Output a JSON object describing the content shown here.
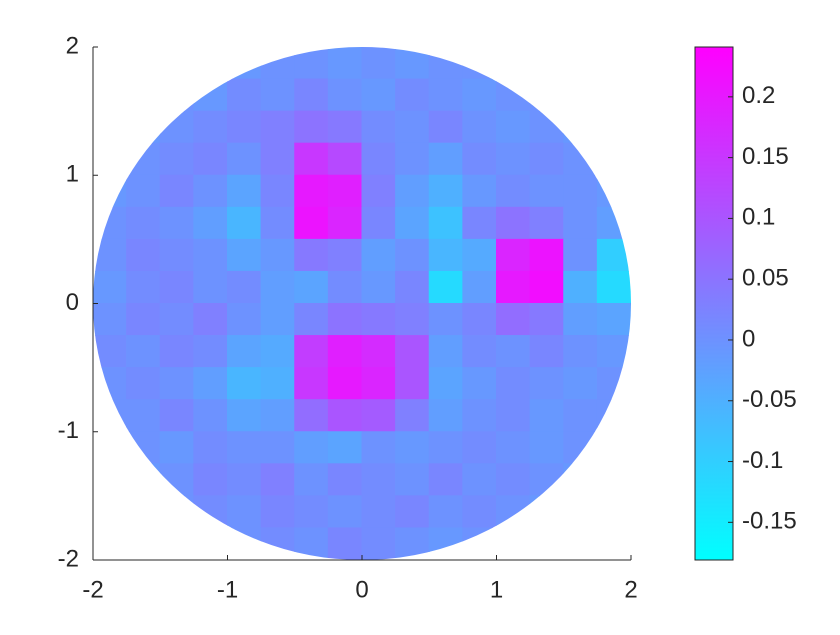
{
  "chart_data": {
    "type": "mesh",
    "colormap": "cool",
    "x": [
      -1.875,
      -1.625,
      -1.375,
      -1.125,
      -0.875,
      -0.625,
      -0.375,
      -0.125,
      0.125,
      0.375,
      0.625,
      0.875,
      1.125,
      1.375,
      1.625,
      1.875
    ],
    "y": [
      1.875,
      1.625,
      1.375,
      1.125,
      0.875,
      0.625,
      0.375,
      0.125,
      -0.125,
      -0.375,
      -0.625,
      -0.875,
      -1.125,
      -1.375,
      -1.625,
      -1.875
    ],
    "z": [
      [
        null,
        null,
        null,
        null,
        -0.01,
        0.0,
        0.0,
        -0.01,
        0.0,
        -0.01,
        0.0,
        0.0,
        null,
        null,
        null,
        null
      ],
      [
        null,
        null,
        0.0,
        -0.01,
        0.01,
        0.0,
        0.02,
        0.0,
        -0.01,
        0.01,
        0.0,
        -0.01,
        0.0,
        0.0,
        null,
        null
      ],
      [
        null,
        -0.01,
        0.0,
        0.01,
        0.02,
        0.03,
        0.05,
        0.04,
        0.01,
        0.0,
        0.02,
        0.0,
        -0.01,
        0.0,
        -0.01,
        null
      ],
      [
        null,
        0.0,
        0.01,
        0.02,
        0.0,
        0.03,
        0.15,
        0.12,
        0.02,
        0.0,
        -0.02,
        0.01,
        0.0,
        0.01,
        0.0,
        null
      ],
      [
        -0.01,
        0.0,
        0.02,
        0.0,
        -0.03,
        0.02,
        0.2,
        0.19,
        0.03,
        -0.02,
        -0.05,
        -0.01,
        0.01,
        0.0,
        0.0,
        -0.01
      ],
      [
        0.0,
        0.01,
        0.0,
        -0.02,
        -0.06,
        0.01,
        0.21,
        0.18,
        0.02,
        -0.03,
        -0.08,
        0.02,
        0.05,
        0.03,
        0.0,
        -0.02
      ],
      [
        0.0,
        0.02,
        0.01,
        0.0,
        -0.03,
        -0.01,
        0.04,
        0.03,
        -0.02,
        0.0,
        -0.06,
        -0.04,
        0.18,
        0.21,
        0.0,
        -0.1
      ],
      [
        -0.01,
        0.01,
        0.02,
        0.0,
        0.01,
        -0.02,
        -0.03,
        0.01,
        -0.01,
        0.02,
        -0.12,
        -0.02,
        0.2,
        0.22,
        -0.05,
        -0.12
      ],
      [
        0.0,
        0.02,
        0.01,
        0.03,
        0.0,
        -0.02,
        0.02,
        0.05,
        0.04,
        0.03,
        0.0,
        0.02,
        0.06,
        0.04,
        -0.02,
        -0.03
      ],
      [
        0.01,
        0.0,
        0.02,
        0.01,
        -0.03,
        -0.04,
        0.14,
        0.19,
        0.17,
        0.1,
        -0.02,
        0.01,
        0.0,
        0.02,
        0.0,
        -0.01
      ],
      [
        0.0,
        0.01,
        0.0,
        -0.02,
        -0.06,
        -0.05,
        0.15,
        0.2,
        0.18,
        0.1,
        -0.03,
        -0.01,
        0.01,
        0.0,
        -0.01,
        0.0
      ],
      [
        0.0,
        0.0,
        0.02,
        0.0,
        -0.03,
        -0.02,
        0.06,
        0.1,
        0.09,
        0.03,
        -0.02,
        0.0,
        0.01,
        -0.01,
        0.0,
        0.0
      ],
      [
        null,
        0.0,
        -0.01,
        0.01,
        0.0,
        0.0,
        -0.02,
        -0.03,
        0.0,
        -0.01,
        0.0,
        0.01,
        0.0,
        -0.01,
        0.0,
        null
      ],
      [
        null,
        -0.01,
        0.0,
        0.02,
        0.01,
        0.03,
        0.0,
        0.02,
        0.01,
        0.0,
        0.02,
        0.0,
        0.01,
        0.0,
        -0.01,
        null
      ],
      [
        null,
        null,
        0.0,
        0.01,
        0.0,
        0.02,
        0.01,
        0.0,
        0.01,
        0.02,
        0.0,
        0.01,
        0.0,
        -0.01,
        null,
        null
      ],
      [
        null,
        null,
        null,
        null,
        0.0,
        0.01,
        0.0,
        0.02,
        0.01,
        0.0,
        -0.01,
        0.0,
        null,
        null,
        null,
        null
      ]
    ],
    "xlim": [
      -2,
      2
    ],
    "ylim": [
      -2,
      2
    ],
    "xticks": [
      -2,
      -1,
      0,
      1,
      2
    ],
    "yticks": [
      -2,
      -1,
      0,
      1,
      2
    ],
    "clim": [
      -0.181,
      0.241
    ],
    "cticks": [
      -0.15,
      -0.1,
      -0.05,
      0,
      0.05,
      0.1,
      0.15,
      0.2
    ]
  }
}
